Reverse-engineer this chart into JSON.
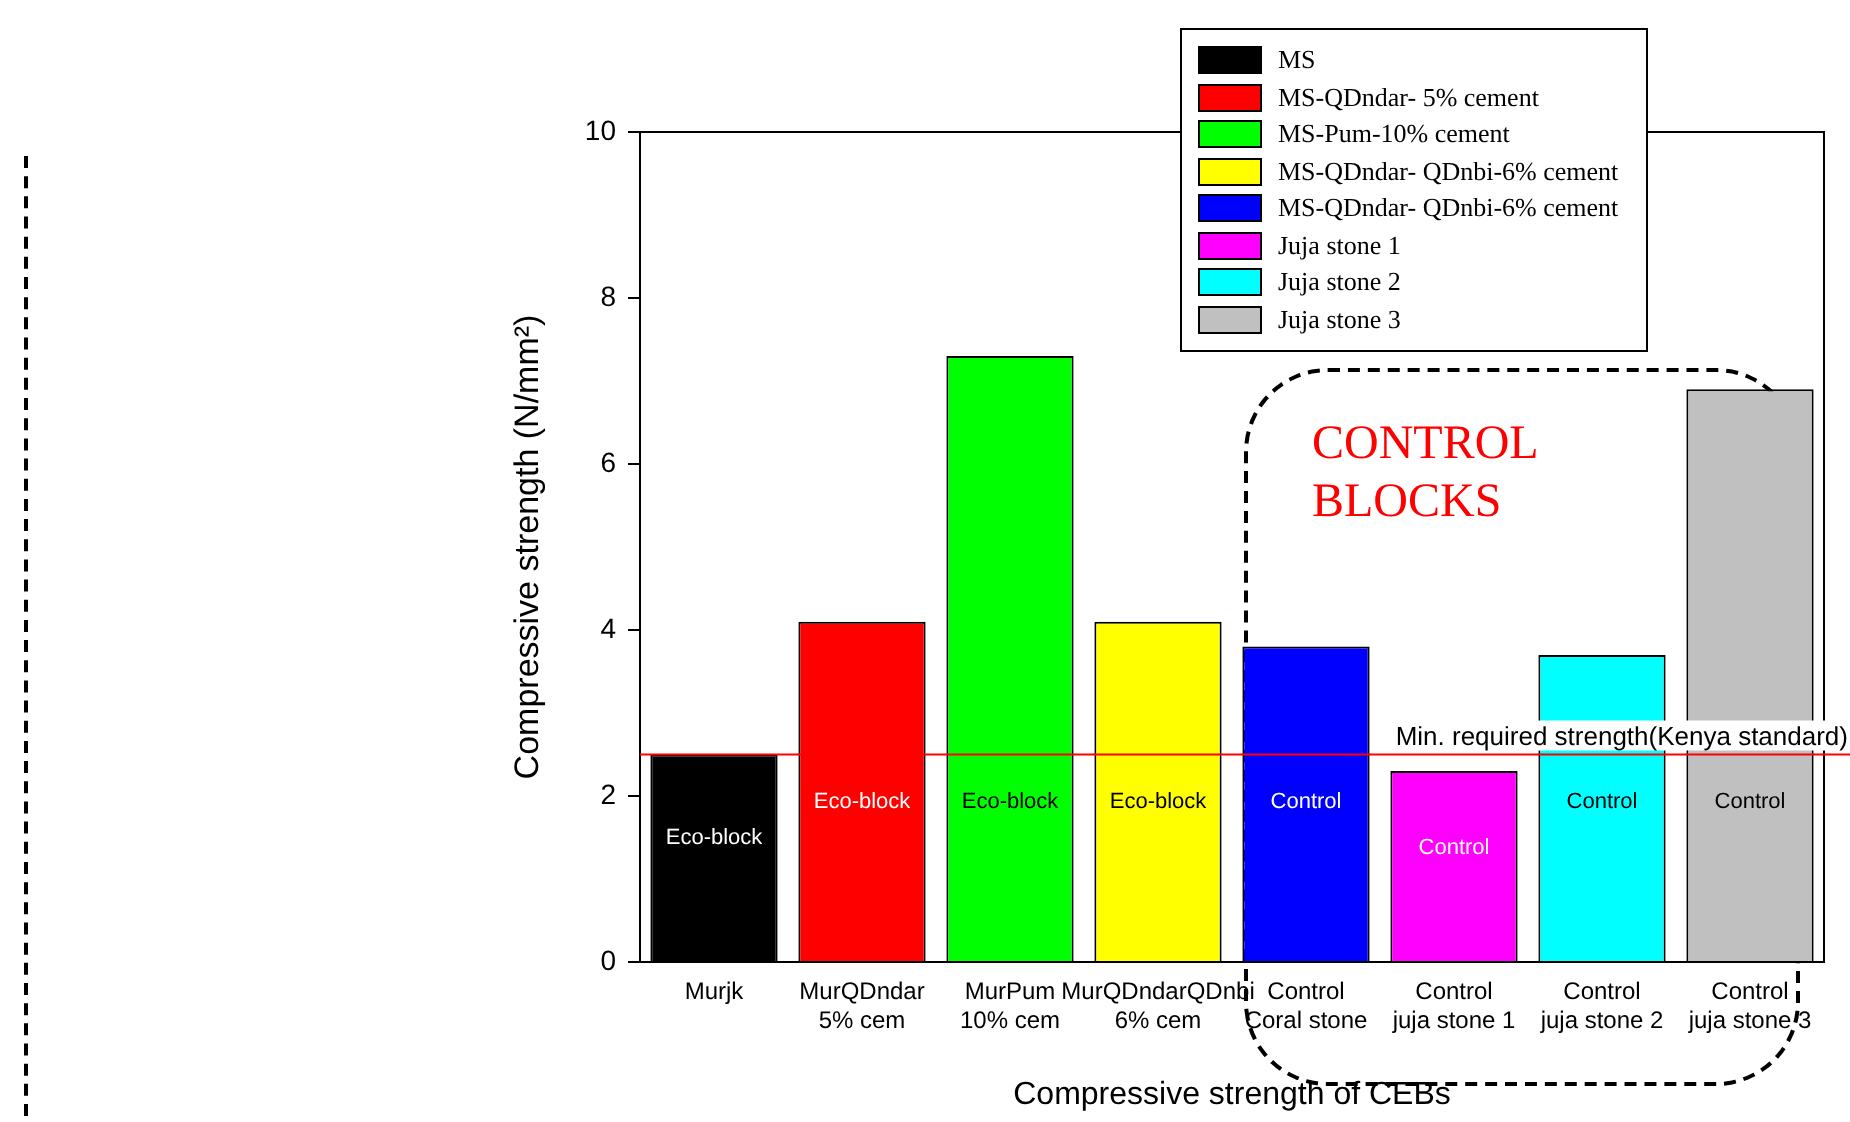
{
  "chart_data": {
    "type": "bar",
    "xlabel": "Compressive strength of CEBs",
    "ylabel": "Compressive strength (N/mm²)",
    "categories": [
      "Murjk",
      "MurQDndar\n5% cem",
      "MurPum\n10% cem",
      "MurQDndarQDnbi\n6% cem",
      "Control\nCoral stone",
      "Control\njuja stone 1",
      "Control\njuja stone 2",
      "Control\njuja stone 3"
    ],
    "series": [
      {
        "name": "MS",
        "color": "#000000",
        "values": [
          2.5,
          null,
          null,
          null,
          null,
          null,
          null,
          null
        ]
      },
      {
        "name": "MS-QDndar- 5% cement",
        "color": "#ff0000",
        "values": [
          null,
          4.1,
          null,
          null,
          null,
          null,
          null,
          null
        ]
      },
      {
        "name": "MS-Pum-10% cement",
        "color": "#00ff00",
        "values": [
          null,
          null,
          7.3,
          null,
          null,
          null,
          null,
          null
        ]
      },
      {
        "name": "MS-QDndar- QDnbi-6% cement",
        "color": "#ffff00",
        "values": [
          null,
          null,
          null,
          4.1,
          null,
          null,
          null,
          null
        ]
      },
      {
        "name": "MS-QDndar- QDnbi-6% cement",
        "color": "#0000ff",
        "values": [
          null,
          null,
          null,
          null,
          3.8,
          null,
          null,
          null
        ]
      },
      {
        "name": "Juja stone 1",
        "color": "#ff00ff",
        "values": [
          null,
          null,
          null,
          null,
          null,
          2.3,
          null,
          null
        ]
      },
      {
        "name": "Juja stone 2",
        "color": "#00ffff",
        "values": [
          null,
          null,
          null,
          null,
          null,
          null,
          3.7,
          null
        ]
      },
      {
        "name": "Juja stone 3",
        "color": "#c0c0c0",
        "values": [
          null,
          null,
          null,
          null,
          null,
          null,
          null,
          6.9
        ]
      }
    ],
    "ylim": [
      0,
      10
    ],
    "yticks": [
      0,
      2,
      4,
      6,
      8,
      10
    ],
    "grid": false,
    "legend": "top right",
    "ref_lines": [
      {
        "axis": "y",
        "value": 2.5,
        "label": "Min. required strength(Kenya standard)",
        "color": "#ff0000"
      }
    ],
    "annotations": [
      "CONTROL BLOCKS",
      "Eco-block",
      "Eco-block",
      "Eco-block",
      "Eco-block",
      "Control",
      "Control",
      "Control",
      "Control"
    ]
  }
}
